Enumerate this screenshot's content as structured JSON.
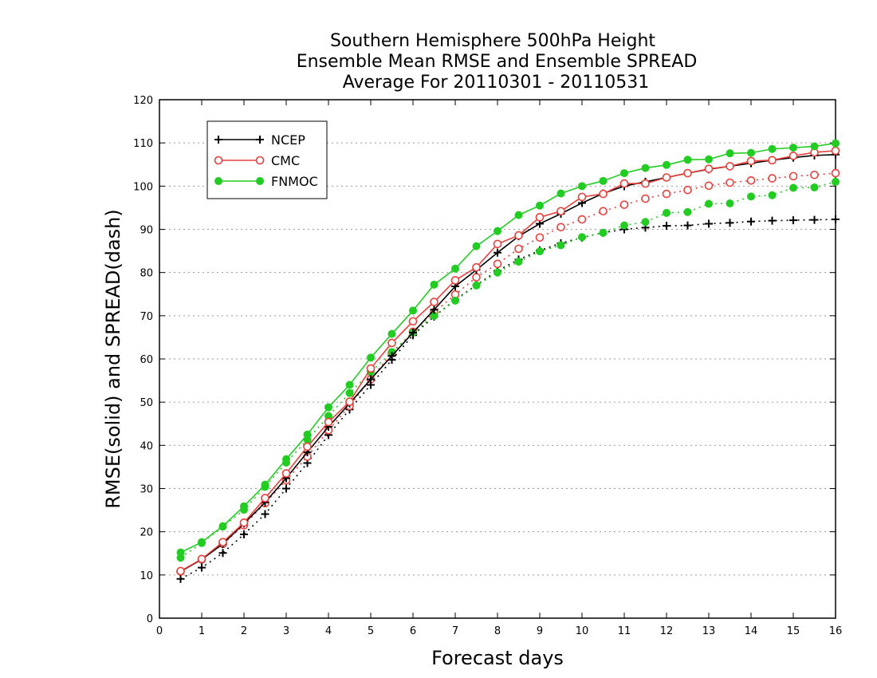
{
  "chart_data": {
    "type": "line",
    "title": [
      "Southern Hemisphere 500hPa Height",
      "Ensemble Mean RMSE and Ensemble SPREAD",
      "Average For 20110301 - 20110531"
    ],
    "xlabel": "Forecast days",
    "ylabel": "RMSE(solid) and SPREAD(dash)",
    "xlim": [
      0,
      16
    ],
    "ylim": [
      0,
      120
    ],
    "xticks": [
      0,
      1,
      2,
      3,
      4,
      5,
      6,
      7,
      8,
      9,
      10,
      11,
      12,
      13,
      14,
      15,
      16
    ],
    "yticks": [
      0,
      10,
      20,
      30,
      40,
      50,
      60,
      70,
      80,
      90,
      100,
      110,
      120
    ],
    "grid": "horizontal dotted",
    "legend_position": "top-left",
    "x": [
      0.5,
      1,
      1.5,
      2,
      2.5,
      3,
      3.5,
      4,
      4.5,
      5,
      5.5,
      6,
      6.5,
      7,
      7.5,
      8,
      8.5,
      9,
      9.5,
      10,
      10.5,
      11,
      11.5,
      12,
      12.5,
      13,
      13.5,
      14,
      14.5,
      15,
      15.5,
      16
    ],
    "series": [
      {
        "name": "NCEP",
        "measure": "RMSE",
        "color": "#000000",
        "marker": "plus",
        "line": "solid",
        "values": [
          10.8,
          13.6,
          17.2,
          21.9,
          26.8,
          32.4,
          38.4,
          44.3,
          49.7,
          55.3,
          60.7,
          66.1,
          71.4,
          76.8,
          80.6,
          84.6,
          88.4,
          91.3,
          93.6,
          96.1,
          98.3,
          100.0,
          101.0,
          102.0,
          103.0,
          103.9,
          104.6,
          105.3,
          106.0,
          106.6,
          107.1,
          107.3
        ]
      },
      {
        "name": "NCEP",
        "measure": "SPREAD",
        "color": "#000000",
        "marker": "plus",
        "line": "dotted",
        "values": [
          9.1,
          11.7,
          15.1,
          19.4,
          24.1,
          30.0,
          35.9,
          42.4,
          48.3,
          54.0,
          59.8,
          65.5,
          69.8,
          73.7,
          77.1,
          80.4,
          83.0,
          85.1,
          86.8,
          88.1,
          89.2,
          90.0,
          90.4,
          90.8,
          90.9,
          91.3,
          91.5,
          91.8,
          92.0,
          92.1,
          92.2,
          92.3
        ]
      },
      {
        "name": "CMC",
        "measure": "RMSE",
        "color": "#e8403c",
        "marker": "open-circle",
        "line": "solid",
        "values": [
          10.9,
          13.7,
          17.6,
          22.1,
          27.8,
          33.5,
          39.7,
          45.4,
          50.1,
          57.8,
          63.7,
          68.7,
          73.2,
          78.2,
          81.2,
          86.6,
          88.6,
          92.8,
          94.2,
          97.5,
          98.2,
          100.6,
          100.6,
          102.0,
          103.0,
          104.0,
          104.6,
          105.8,
          106.0,
          107.0,
          107.8,
          108.2
        ]
      },
      {
        "name": "CMC",
        "measure": "SPREAD",
        "color": "#e8403c",
        "marker": "open-circle",
        "line": "dotted",
        "values": [
          10.8,
          13.6,
          17.2,
          21.5,
          26.6,
          31.9,
          37.4,
          43.5,
          49.1,
          55.3,
          61.4,
          66.3,
          70.8,
          74.9,
          78.9,
          82.0,
          85.5,
          88.1,
          90.5,
          92.3,
          94.2,
          95.7,
          97.1,
          98.2,
          99.1,
          100.1,
          100.8,
          101.3,
          101.8,
          102.3,
          102.6,
          103.0
        ]
      },
      {
        "name": "FNMOC",
        "measure": "RMSE",
        "color": "#22cc22",
        "marker": "filled-circle",
        "line": "solid",
        "values": [
          15.2,
          17.6,
          21.3,
          25.9,
          30.9,
          36.8,
          42.5,
          48.8,
          54.0,
          60.3,
          65.8,
          71.2,
          77.2,
          80.9,
          86.1,
          89.6,
          93.3,
          95.5,
          98.3,
          100.0,
          101.2,
          103.0,
          104.2,
          104.9,
          106.1,
          106.2,
          107.6,
          107.7,
          108.6,
          108.9,
          109.2,
          109.9
        ]
      },
      {
        "name": "FNMOC",
        "measure": "SPREAD",
        "color": "#22cc22",
        "marker": "filled-circle",
        "line": "dotted",
        "values": [
          14.0,
          17.4,
          21.2,
          25.1,
          30.4,
          36.0,
          41.3,
          46.8,
          52.1,
          57.0,
          61.6,
          66.1,
          70.0,
          73.5,
          77.0,
          80.0,
          82.5,
          84.9,
          86.3,
          88.2,
          89.2,
          90.9,
          91.7,
          93.8,
          94.0,
          95.9,
          96.0,
          97.6,
          97.9,
          99.6,
          99.7,
          101.0
        ]
      }
    ],
    "legend": [
      {
        "label": "NCEP",
        "color": "#000000",
        "marker": "plus"
      },
      {
        "label": "CMC",
        "color": "#e8403c",
        "marker": "open-circle"
      },
      {
        "label": "FNMOC",
        "color": "#22cc22",
        "marker": "filled-circle"
      }
    ]
  }
}
